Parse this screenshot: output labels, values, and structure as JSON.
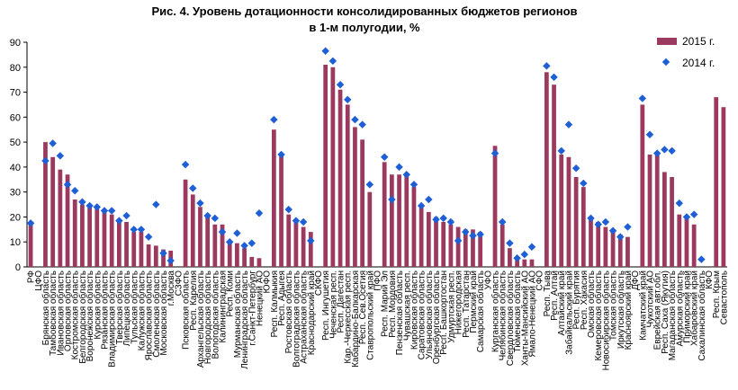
{
  "chart_data": {
    "type": "bar",
    "title": [
      "Рис. 4. Уровень дотационности консолидированных бюджетов регионов",
      "в 1-м полугодии, %"
    ],
    "xlabel": "",
    "ylabel": "",
    "ylim": [
      0,
      90
    ],
    "yticks": [
      0,
      10,
      20,
      30,
      40,
      50,
      60,
      70,
      80,
      90
    ],
    "grid": false,
    "legend_position": "top-right",
    "colors": {
      "bar": "#9b3a5e",
      "marker": "#1f5fd6"
    },
    "categories": [
      "РФ",
      "ЦФО",
      "Брянская область",
      "Тамбовская область",
      "Ивановская область",
      "Орловская область",
      "Костромская область",
      "Белгородская область",
      "Воронежская область",
      "Курская область",
      "Рязанская область",
      "Владимирская область",
      "Тверская область",
      "Липецкая область",
      "Тульская область",
      "Калужская область",
      "Ярославская область",
      "Смоленская область",
      "Московская область",
      "г.Москва",
      "СЗФО",
      "Псковская область",
      "Респ. Карелия",
      "Архангельская область",
      "Новгородская область",
      "Вологодская область",
      "Калининградская",
      "Респ. Коми",
      "Мурманская область",
      "Ленинградская область",
      "г.Санкт-Петербург",
      "Ненецкий АО",
      "ЮФО",
      "Респ. Калмыкия",
      "Респ. Адыгея",
      "Ростовская область",
      "Волгоградская область",
      "Астраханская область",
      "Краснодарский край",
      "СКФО",
      "Респ. Ингушетия",
      "Чеченская респ.",
      "Респ. Дагестан",
      "Кар.-Черкесская респ.",
      "Кабардино-Балкарская",
      "Респ. Сев.Осетия",
      "Ставропольский край",
      "ПФО",
      "Респ. Марий Эл",
      "Респ. Мордовия",
      "Пензенская область",
      "Чувашская респ.",
      "Кировская область",
      "Саратовская область",
      "Ульяновская область",
      "Оренбургская область",
      "Респ. Башкортостан",
      "Удмуртская респ.",
      "Нижегородская",
      "Респ. Татарстан",
      "Пермский край",
      "Самарская область",
      "УФО",
      "Курганская область",
      "Челябинская область",
      "Свердловская область",
      "Тюменская область",
      "Ханты-Мансийский АО",
      "Ямало-Ненецкий АО",
      "СФО",
      "Респ. Тыва",
      "Респ. Алтай",
      "Алтайский край",
      "Забайкальский край",
      "Респ. Бурятия",
      "Респ. Хакасия",
      "Омская область",
      "Кемеровская область",
      "Новосибирская область",
      "Томская область",
      "Иркутская область",
      "Красноярский край",
      "ДФО",
      "Камчатский край",
      "Чукотский АО",
      "Еврейская авт.обл.",
      "Респ. Саха (Якутия)",
      "Магаданская область",
      "Амурская область",
      "Приморский край",
      "Хабаровский край",
      "Сахалинская область",
      "КФО",
      "Респ. Крым",
      "Севастополь"
    ],
    "series": [
      {
        "name": "2015 г.",
        "type": "bar",
        "values": [
          18,
          0,
          50,
          44,
          39,
          37,
          27,
          25,
          24,
          24,
          22,
          21,
          18,
          18,
          14,
          14,
          9,
          8.5,
          7,
          6.5,
          0,
          35,
          29,
          24,
          20,
          17,
          17,
          10,
          9.5,
          7.5,
          4,
          3.5,
          0,
          55,
          45,
          21,
          18,
          16,
          14,
          0,
          81,
          80,
          71,
          65,
          56,
          51,
          30,
          0,
          42,
          37,
          37,
          37,
          32,
          25,
          22,
          20,
          18,
          17,
          16,
          15,
          15,
          14,
          0,
          48.5,
          17,
          7.5,
          3,
          3,
          3,
          0,
          78,
          73,
          45,
          44,
          36,
          32,
          20,
          18,
          16,
          15,
          13,
          12,
          0,
          65,
          45,
          45,
          38,
          36,
          21,
          20,
          17,
          0,
          0,
          68,
          64
        ]
      },
      {
        "name": "2014 г.",
        "type": "scatter",
        "values": [
          17.5,
          null,
          42.5,
          49.5,
          44.5,
          33,
          30.5,
          26,
          24.5,
          24,
          22.5,
          22.5,
          18.5,
          20.5,
          15,
          15,
          12,
          25,
          5.5,
          2.5,
          null,
          41,
          31.5,
          25.5,
          20.5,
          19.5,
          14,
          10,
          13.5,
          8.5,
          9.5,
          21.5,
          null,
          59,
          45,
          23,
          18.5,
          18,
          10.5,
          null,
          86.5,
          82.5,
          73,
          67,
          59,
          57,
          33,
          null,
          44,
          27,
          40,
          37,
          33,
          24.5,
          27,
          19,
          19.5,
          18,
          10.5,
          14,
          12.5,
          13,
          null,
          45.5,
          18,
          9.5,
          3.5,
          5,
          8,
          null,
          80.5,
          76,
          46.5,
          57,
          39.5,
          33.5,
          19.5,
          17,
          18,
          14.5,
          12,
          16,
          null,
          67.5,
          53,
          45.5,
          47,
          46.5,
          25.5,
          20,
          21,
          3,
          null,
          null,
          null
        ]
      }
    ]
  }
}
